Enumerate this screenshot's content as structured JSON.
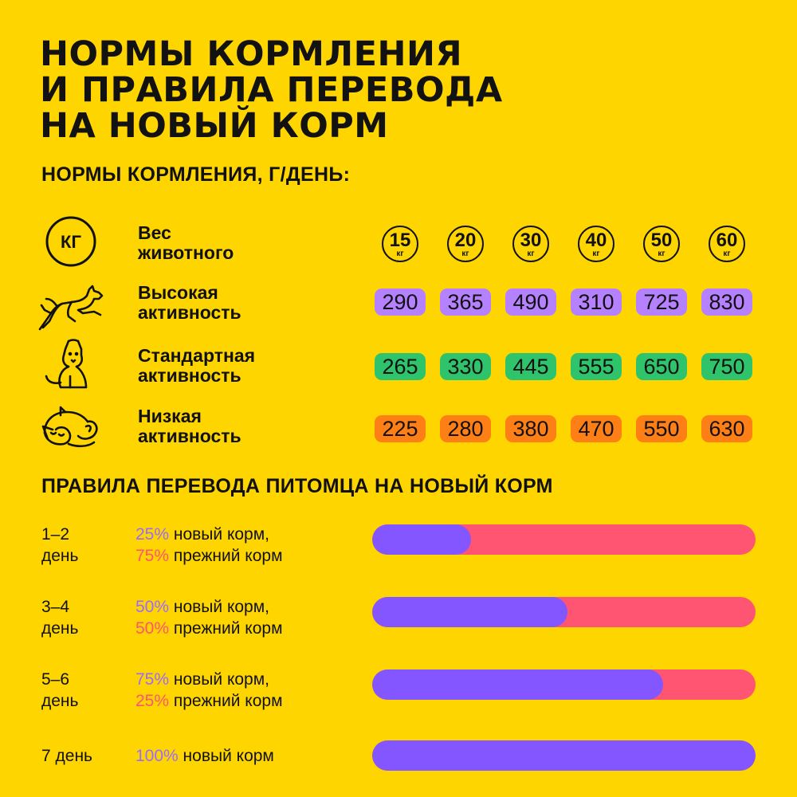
{
  "title_lines": [
    "НОРМЫ КОРМЛЕНИЯ",
    "И ПРАВИЛА ПЕРЕВОДА",
    "НА НОВЫЙ КОРМ"
  ],
  "feeding": {
    "heading": "НОРМЫ КОРМЛЕНИЯ, Г/ДЕНЬ:",
    "weight_icon_text": "КГ",
    "weight_label": [
      "Вес",
      "животного"
    ],
    "weight_unit": "кг",
    "weights": [
      "15",
      "20",
      "30",
      "40",
      "50",
      "60"
    ],
    "rows": [
      {
        "icon": "jumping-dog-icon",
        "label": [
          "Высокая",
          "активность"
        ],
        "color": "#B681FF",
        "values": [
          "290",
          "365",
          "490",
          "310",
          "725",
          "830"
        ]
      },
      {
        "icon": "sitting-dog-icon",
        "label": [
          "Стандартная",
          "активность"
        ],
        "color": "#2FC46B",
        "values": [
          "265",
          "330",
          "445",
          "555",
          "650",
          "750"
        ]
      },
      {
        "icon": "sleeping-cat-icon",
        "label": [
          "Низкая",
          "активность"
        ],
        "color": "#FF7F17",
        "values": [
          "225",
          "280",
          "380",
          "470",
          "550",
          "630"
        ]
      }
    ]
  },
  "transition": {
    "heading": "ПРАВИЛА ПЕРЕВОДА ПИТОМЦА НА НОВЫЙ КОРМ",
    "new_label": "новый корм",
    "old_label": "прежний корм",
    "colors": {
      "new": "#8456FF",
      "old": "#FF5472",
      "new_text": "#9A6BFF",
      "old_text": "#FF5472"
    },
    "steps": [
      {
        "day": [
          "1–2",
          "день"
        ],
        "new_pct": "25%",
        "old_pct": "75%"
      },
      {
        "day": [
          "3–4",
          "день"
        ],
        "new_pct": "50%",
        "old_pct": "50%"
      },
      {
        "day": [
          "5–6",
          "день"
        ],
        "new_pct": "75%",
        "old_pct": "25%"
      },
      {
        "day": [
          "7 день"
        ],
        "new_pct": "100%",
        "old_pct": ""
      }
    ]
  },
  "chart_data": {
    "type": "bar",
    "categories": [
      "1–2 день",
      "3–4 день",
      "5–6 день",
      "7 день"
    ],
    "series": [
      {
        "name": "новый корм",
        "values": [
          25,
          50,
          75,
          100
        ]
      },
      {
        "name": "прежний корм",
        "values": [
          75,
          50,
          25,
          0
        ]
      }
    ],
    "ylim": [
      0,
      100
    ],
    "stacked": true,
    "orientation": "horizontal"
  }
}
